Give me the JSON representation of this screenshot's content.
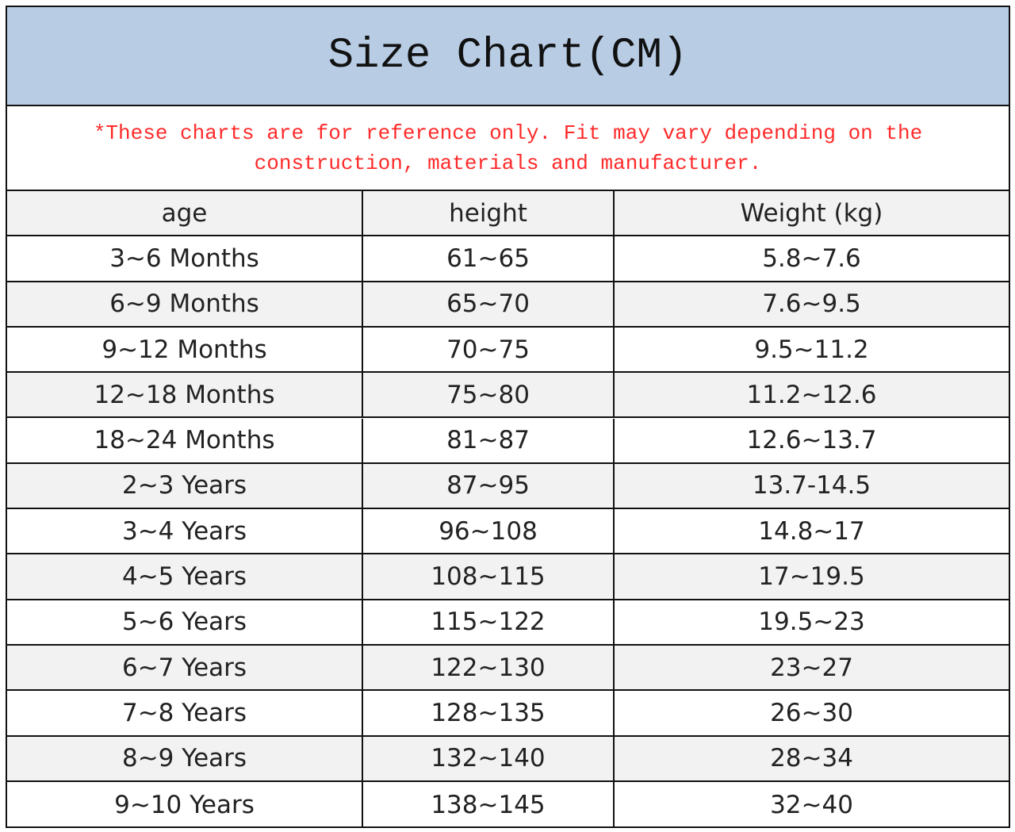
{
  "header": {
    "title": "Size Chart(CM)"
  },
  "note": "*These charts are for reference only. Fit may vary depending on the construction, materials and manufacturer.",
  "table": {
    "columns": [
      "age",
      "height",
      "Weight (kg)"
    ],
    "rows": [
      [
        "3~6 Months",
        "61~65",
        "5.8~7.6"
      ],
      [
        "6~9 Months",
        "65~70",
        "7.6~9.5"
      ],
      [
        "9~12 Months",
        "70~75",
        "9.5~11.2"
      ],
      [
        "12~18 Months",
        "75~80",
        "11.2~12.6"
      ],
      [
        "18~24 Months",
        "81~87",
        "12.6~13.7"
      ],
      [
        "2~3 Years",
        "87~95",
        "13.7-14.5"
      ],
      [
        "3~4 Years",
        "96~108",
        "14.8~17"
      ],
      [
        "4~5 Years",
        "108~115",
        "17~19.5"
      ],
      [
        "5~6 Years",
        "115~122",
        "19.5~23"
      ],
      [
        "6~7 Years",
        "122~130",
        "23~27"
      ],
      [
        "7~8 Years",
        "128~135",
        "26~30"
      ],
      [
        "8~9 Years",
        "132~140",
        "28~34"
      ],
      [
        "9~10 Years",
        "138~145",
        "32~40"
      ]
    ]
  }
}
